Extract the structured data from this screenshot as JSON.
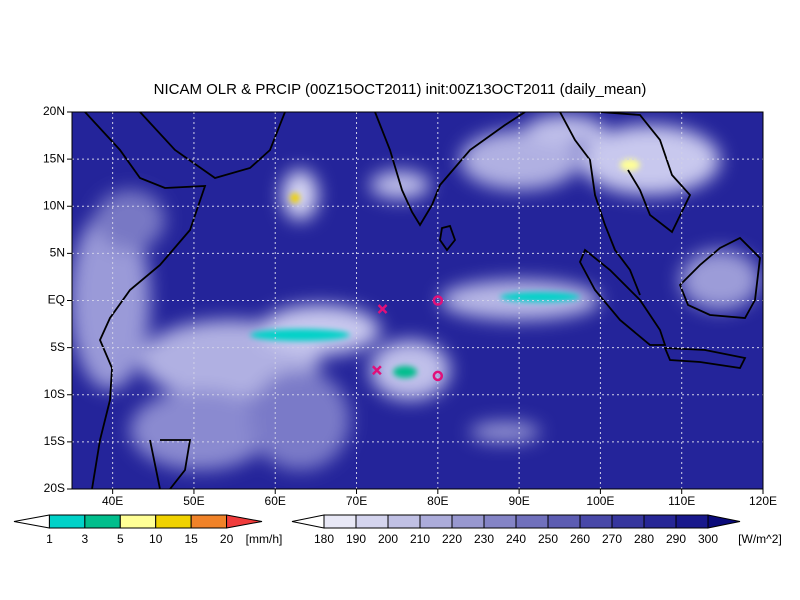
{
  "map": {
    "title": "NICAM OLR & PRCIP (00Z15OCT2011) init:00Z13OCT2011 (daily_mean)",
    "xlim": [
      35,
      120
    ],
    "ylim": [
      -20,
      20
    ],
    "xticks": [
      {
        "value": 40,
        "label": "40E"
      },
      {
        "value": 50,
        "label": "50E"
      },
      {
        "value": 60,
        "label": "60E"
      },
      {
        "value": 70,
        "label": "70E"
      },
      {
        "value": 80,
        "label": "80E"
      },
      {
        "value": 90,
        "label": "90E"
      },
      {
        "value": 100,
        "label": "100E"
      },
      {
        "value": 110,
        "label": "110E"
      },
      {
        "value": 120,
        "label": "120E"
      }
    ],
    "yticks": [
      {
        "value": 20,
        "label": "20N"
      },
      {
        "value": 15,
        "label": "15N"
      },
      {
        "value": 10,
        "label": "10N"
      },
      {
        "value": 5,
        "label": "5N"
      },
      {
        "value": 0,
        "label": "EQ"
      },
      {
        "value": -5,
        "label": "5S"
      },
      {
        "value": -10,
        "label": "10S"
      },
      {
        "value": -15,
        "label": "15S"
      },
      {
        "value": -20,
        "label": "20S"
      }
    ],
    "grid": true,
    "markers": [
      {
        "symbol": "x",
        "lon": 73.2,
        "lat": -0.9,
        "color": "#e0107a"
      },
      {
        "symbol": "o",
        "lon": 80,
        "lat": 0,
        "color": "#e0107a"
      },
      {
        "symbol": "x",
        "lon": 72.5,
        "lat": -7.4,
        "color": "#e0107a"
      },
      {
        "symbol": "o",
        "lon": 80,
        "lat": -8,
        "color": "#e0107a"
      }
    ],
    "precip_colorbar": {
      "levels": [
        1,
        3,
        5,
        10,
        15,
        20
      ],
      "unit": "[mm/h]",
      "colors": [
        "#ffffff",
        "#00d2c8",
        "#00be8c",
        "#ffff96",
        "#f0d200",
        "#f08228",
        "#f03c3c"
      ]
    },
    "olr_colorbar": {
      "levels": [
        180,
        190,
        200,
        210,
        220,
        230,
        240,
        250,
        260,
        270,
        280,
        290,
        300
      ],
      "unit": "[W/m^2]",
      "colors": [
        "#ffffff",
        "#e8e8f6",
        "#d4d4ee",
        "#c0c0e4",
        "#acacda",
        "#9898d0",
        "#8484c6",
        "#7070bc",
        "#5c5cb2",
        "#4848a8",
        "#36369e",
        "#262696",
        "#18188c",
        "#0a0a7a"
      ]
    }
  }
}
